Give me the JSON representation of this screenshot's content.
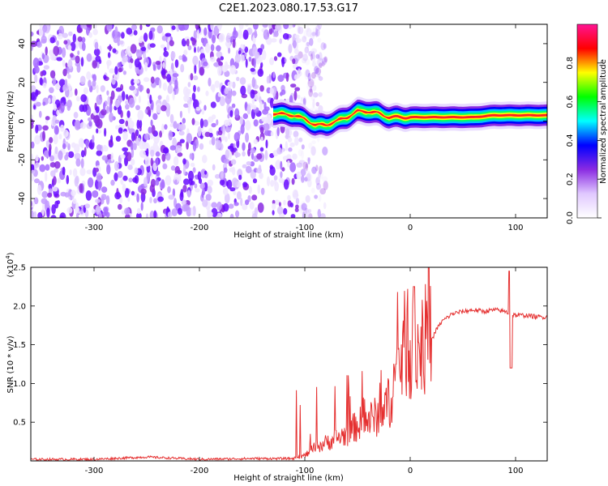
{
  "title": "C2E1.2023.080.17.53.G17",
  "chart_data": [
    {
      "type": "heatmap",
      "xlabel": "Height of straight line (km)",
      "ylabel": "Frequency (Hz)",
      "xlim": [
        -360,
        130
      ],
      "ylim": [
        -50,
        50
      ],
      "xticks": [
        -300,
        -200,
        -100,
        0,
        100
      ],
      "yticks": [
        -40,
        -20,
        0,
        20,
        40
      ],
      "colorbar": {
        "label": "Normalized spectral amplitude",
        "range": [
          0.0,
          1.0
        ],
        "ticks": [
          "0.0",
          "0.2",
          "0.4",
          "0.6",
          "0.8"
        ],
        "colormap": [
          "#ffffff",
          "#e0c8ff",
          "#8a2be2",
          "#0000ff",
          "#00ffff",
          "#00ff00",
          "#ffff00",
          "#ff0000",
          "#ff1493"
        ]
      },
      "noise_region": {
        "x_from": -360,
        "x_to": -105,
        "level": 0.12
      },
      "signal_track": [
        {
          "x": -130,
          "f": 4
        },
        {
          "x": -110,
          "f": 3
        },
        {
          "x": -100,
          "f": 1
        },
        {
          "x": -90,
          "f": -2
        },
        {
          "x": -80,
          "f": -2
        },
        {
          "x": -70,
          "f": 0
        },
        {
          "x": -60,
          "f": 2
        },
        {
          "x": -50,
          "f": 5
        },
        {
          "x": -40,
          "f": 5
        },
        {
          "x": -30,
          "f": 4
        },
        {
          "x": -20,
          "f": 2
        },
        {
          "x": -10,
          "f": 2
        },
        {
          "x": 0,
          "f": 2
        },
        {
          "x": 20,
          "f": 2
        },
        {
          "x": 40,
          "f": 2
        },
        {
          "x": 60,
          "f": 2
        },
        {
          "x": 80,
          "f": 3
        },
        {
          "x": 100,
          "f": 3
        },
        {
          "x": 130,
          "f": 3
        }
      ]
    },
    {
      "type": "line",
      "xlabel": "Height of straight line (km)",
      "ylabel": "SNR (10 * v/v)",
      "exponent_label": "(x10",
      "exponent_power": "4",
      "exponent_close": ")",
      "xlim": [
        -360,
        130
      ],
      "ylim": [
        0,
        2.5
      ],
      "xticks": [
        -300,
        -200,
        -100,
        0,
        100
      ],
      "yticks": [
        "0.5",
        "1.0",
        "1.5",
        "2.0",
        "2.5"
      ],
      "series": [
        {
          "color": "#e53030",
          "x": [
            -360,
            -300,
            -250,
            -200,
            -150,
            -110,
            -100,
            -90,
            -80,
            -70,
            -60,
            -50,
            -40,
            -30,
            -20,
            -10,
            -5,
            0,
            5,
            10,
            15,
            20,
            25,
            30,
            40,
            50,
            60,
            70,
            80,
            90,
            95,
            100,
            110,
            120,
            130
          ],
          "y": [
            0.02,
            0.02,
            0.05,
            0.02,
            0.03,
            0.03,
            0.06,
            0.15,
            0.2,
            0.25,
            0.3,
            0.4,
            0.45,
            0.5,
            0.65,
            1.1,
            1.3,
            1.25,
            1.2,
            1.3,
            1.35,
            1.55,
            1.7,
            1.8,
            1.9,
            1.93,
            1.95,
            1.93,
            1.95,
            1.93,
            1.9,
            1.88,
            1.88,
            1.86,
            1.86
          ]
        }
      ]
    }
  ]
}
